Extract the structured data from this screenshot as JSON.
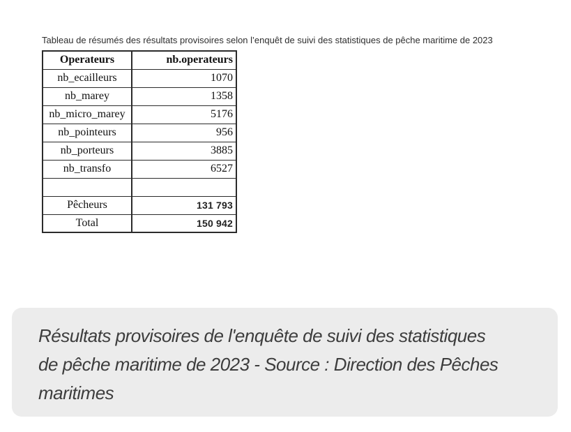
{
  "title": "Tableau de résumés des résultats provisoires selon l’enquêt de suivi des statistiques de pêche maritime de 2023",
  "table": {
    "headers": [
      "Operateurs",
      "nb.operateurs"
    ],
    "rows": [
      {
        "label": "nb_ecailleurs",
        "value": "1070"
      },
      {
        "label": "nb_marey",
        "value": "1358"
      },
      {
        "label": "nb_micro_marey",
        "value": "5176"
      },
      {
        "label": "nb_pointeurs",
        "value": "956"
      },
      {
        "label": "nb_porteurs",
        "value": "3885"
      },
      {
        "label": "nb_transfo",
        "value": "6527"
      },
      {
        "label": "",
        "value": ""
      },
      {
        "label": "Pêcheurs",
        "value": "131 793"
      },
      {
        "label": "Total",
        "value": "150 942"
      }
    ]
  },
  "caption": {
    "text": "Résultats provisoires de l'enquête de suivi des statistiques de pêche maritime de 2023 - Source : Direction des Pêches maritimes",
    "lines": [
      "Résultats provisoires de l'enquête de suivi des statistiques",
      "de pêche maritime de 2023 - Source : Direction des Pêches",
      "maritimes"
    ],
    "background": "#ececec",
    "text_color": "#3d3d3d"
  }
}
